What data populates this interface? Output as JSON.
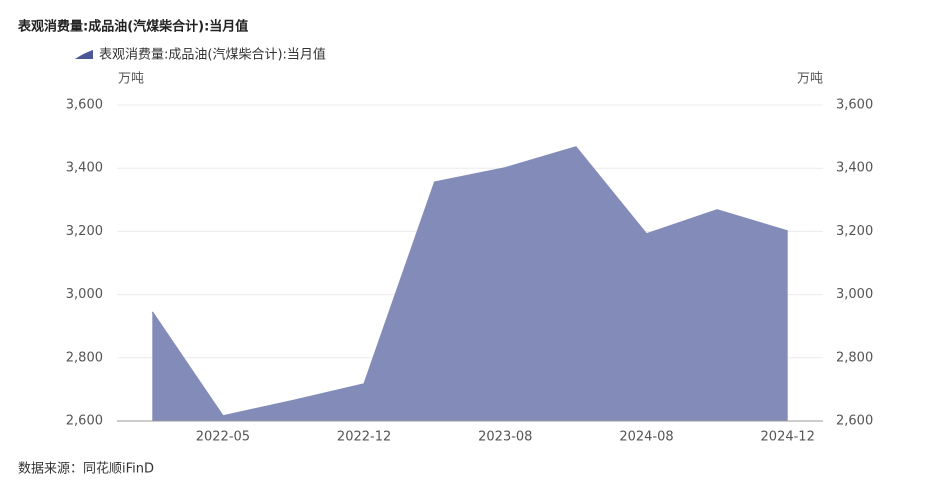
{
  "chart_data": {
    "type": "area",
    "title": "表观消费量:成品油(汽煤柴合计):当月值",
    "y_label": "万吨",
    "y2_label": "万吨",
    "source": "数据来源：同花顺iFinD",
    "categories": [
      null,
      "2022-05",
      null,
      "2022-12",
      null,
      "2023-08",
      null,
      "2024-08",
      null,
      "2024-12"
    ],
    "series": [
      {
        "name": "表观消费量:成品油(汽煤柴合计):当月值",
        "color": "#838cb9",
        "values": [
          2945,
          2616,
          2665,
          2717,
          3356,
          3401,
          3467,
          3192,
          3268,
          3201
        ]
      }
    ],
    "ylim": [
      2600,
      3600
    ],
    "yticks": [
      {
        "value": 2600,
        "label": "2,600"
      },
      {
        "value": 2800,
        "label": "2,800"
      },
      {
        "value": 3000,
        "label": "3,000"
      },
      {
        "value": 3200,
        "label": "3,200"
      },
      {
        "value": 3400,
        "label": "3,400"
      },
      {
        "value": 3600,
        "label": "3,600"
      }
    ],
    "y2lim": [
      2600,
      3600
    ],
    "y2ticks": [
      {
        "value": 2600,
        "label": "2,600"
      },
      {
        "value": 2800,
        "label": "2,800"
      },
      {
        "value": 3000,
        "label": "3,000"
      },
      {
        "value": 3200,
        "label": "3,200"
      },
      {
        "value": 3400,
        "label": "3,400"
      },
      {
        "value": 3600,
        "label": "3,600"
      }
    ],
    "grid": true
  }
}
